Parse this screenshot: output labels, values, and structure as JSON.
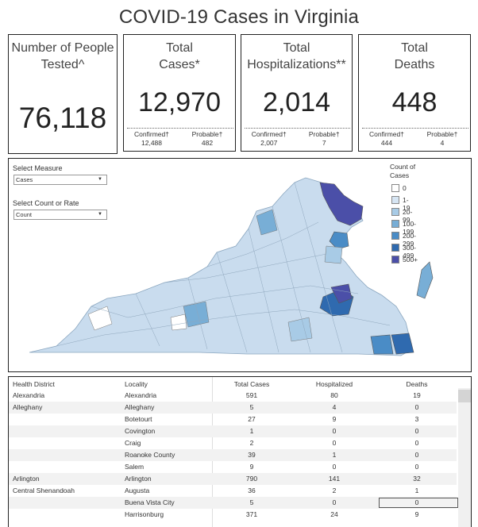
{
  "title": "COVID-19 Cases in Virginia",
  "cards": {
    "tested": {
      "label_line1": "Number of People",
      "label_line2": "Tested^",
      "value": "76,118"
    },
    "cases": {
      "label_line1": "Total",
      "label_line2": "Cases*",
      "value": "12,970",
      "confirmed_label": "Confirmed†",
      "confirmed_value": "12,488",
      "probable_label": "Probable†",
      "probable_value": "482"
    },
    "hosp": {
      "label_line1": "Total",
      "label_line2": "Hospitalizations**",
      "value": "2,014",
      "confirmed_label": "Confirmed†",
      "confirmed_value": "2,007",
      "probable_label": "Probable†",
      "probable_value": "7"
    },
    "deaths": {
      "label_line1": "Total",
      "label_line2": "Deaths",
      "value": "448",
      "confirmed_label": "Confirmed†",
      "confirmed_value": "444",
      "probable_label": "Probable†",
      "probable_value": "4"
    }
  },
  "controls": {
    "measure_label": "Select Measure",
    "measure_value": "Cases",
    "count_label": "Select Count or Rate",
    "count_value": "Count"
  },
  "legend": {
    "title_line1": "Count of",
    "title_line2": "Cases",
    "items": [
      {
        "label": "0",
        "color": "#ffffff"
      },
      {
        "label": "1-19",
        "color": "#d6e5f3"
      },
      {
        "label": "20-99",
        "color": "#a8cbe6"
      },
      {
        "label": "100-199",
        "color": "#78aed6"
      },
      {
        "label": "200-299",
        "color": "#4a8cc6"
      },
      {
        "label": "300-499",
        "color": "#2f6aaf"
      },
      {
        "label": "500+",
        "color": "#4b4fa8"
      }
    ]
  },
  "table": {
    "headers": [
      "Health District",
      "Locality",
      "Total Cases",
      "Hospitalized",
      "Deaths"
    ],
    "rows": [
      {
        "district": "Alexandria",
        "locality": "Alexandria",
        "cases": "591",
        "hosp": "80",
        "deaths": "19"
      },
      {
        "district": "Alleghany",
        "locality": "Alleghany",
        "cases": "5",
        "hosp": "4",
        "deaths": "0"
      },
      {
        "district": "",
        "locality": "Botetourt",
        "cases": "27",
        "hosp": "9",
        "deaths": "3"
      },
      {
        "district": "",
        "locality": "Covington",
        "cases": "1",
        "hosp": "0",
        "deaths": "0"
      },
      {
        "district": "",
        "locality": "Craig",
        "cases": "2",
        "hosp": "0",
        "deaths": "0"
      },
      {
        "district": "",
        "locality": "Roanoke County",
        "cases": "39",
        "hosp": "1",
        "deaths": "0"
      },
      {
        "district": "",
        "locality": "Salem",
        "cases": "9",
        "hosp": "0",
        "deaths": "0"
      },
      {
        "district": "Arlington",
        "locality": "Arlington",
        "cases": "790",
        "hosp": "141",
        "deaths": "32"
      },
      {
        "district": "Central Shenandoah",
        "locality": "Augusta",
        "cases": "36",
        "hosp": "2",
        "deaths": "1"
      },
      {
        "district": "",
        "locality": "Buena Vista City",
        "cases": "5",
        "hosp": "0",
        "deaths": "0"
      },
      {
        "district": "",
        "locality": "Harrisonburg",
        "cases": "371",
        "hosp": "24",
        "deaths": "9"
      }
    ]
  }
}
